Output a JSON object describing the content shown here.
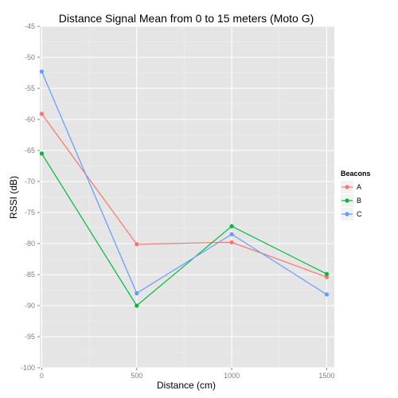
{
  "chart_data": {
    "type": "line",
    "title": "Distance Signal Mean from 0 to 15 meters (Moto G)",
    "xlabel": "Distance (cm)",
    "ylabel": "RSSI (dB)",
    "x": [
      0,
      500,
      1000,
      1500
    ],
    "x_ticks": [
      "0",
      "500",
      "1000",
      "1500"
    ],
    "y_ticks": [
      "-45",
      "-50",
      "-55",
      "-60",
      "-65",
      "-70",
      "-75",
      "-80",
      "-85",
      "-90",
      "-95",
      "-100"
    ],
    "xlim": [
      -10,
      1540
    ],
    "ylim": [
      -100,
      -45
    ],
    "grid": true,
    "legend_title": "Beacons",
    "legend_position": "right",
    "series": [
      {
        "name": "A",
        "color": "#F8766D",
        "values": [
          -59.1,
          -80.1,
          -79.8,
          -85.4
        ]
      },
      {
        "name": "B",
        "color": "#00BA38",
        "values": [
          -65.5,
          -90.0,
          -77.2,
          -84.9
        ]
      },
      {
        "name": "C",
        "color": "#619CFF",
        "values": [
          -52.3,
          -88.0,
          -78.5,
          -88.2
        ]
      }
    ]
  }
}
